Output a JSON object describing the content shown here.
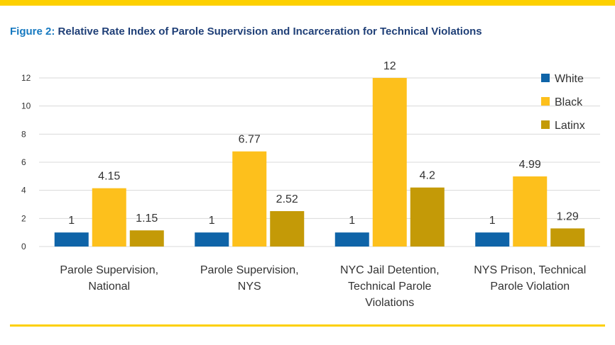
{
  "title_prefix": "Figure 2:",
  "title_main": "Relative Rate Index of Parole Supervision and Incarceration for Technical Violations",
  "chart_data": {
    "type": "bar",
    "title": "Figure 2: Relative Rate Index of Parole Supervision and Incarceration for Technical Violations",
    "categories": [
      [
        "Parole Supervision,",
        "National"
      ],
      [
        "Parole Supervision,",
        "NYS"
      ],
      [
        "NYC Jail Detention,",
        "Technical Parole",
        "Violations"
      ],
      [
        "NYS Prison, Technical",
        "Parole Violation"
      ]
    ],
    "series": [
      {
        "name": "White",
        "color": "#0f64a8",
        "values": [
          1,
          1,
          1,
          1
        ],
        "labels": [
          "1",
          "1",
          "1",
          "1"
        ]
      },
      {
        "name": "Black",
        "color": "#fdc01c",
        "values": [
          4.15,
          6.77,
          12,
          4.99
        ],
        "labels": [
          "4.15",
          "6.77",
          "12",
          "4.99"
        ]
      },
      {
        "name": "Latinx",
        "color": "#c49a07",
        "values": [
          1.15,
          2.52,
          4.2,
          1.29
        ],
        "labels": [
          "1.15",
          "2.52",
          "4.2",
          "1.29"
        ]
      }
    ],
    "yticks": [
      "0",
      "2",
      "4",
      "6",
      "8",
      "10",
      "12"
    ],
    "ylim": [
      0,
      12
    ],
    "xlabel": "",
    "ylabel": "",
    "grid": true,
    "legend_position": "top-right"
  }
}
